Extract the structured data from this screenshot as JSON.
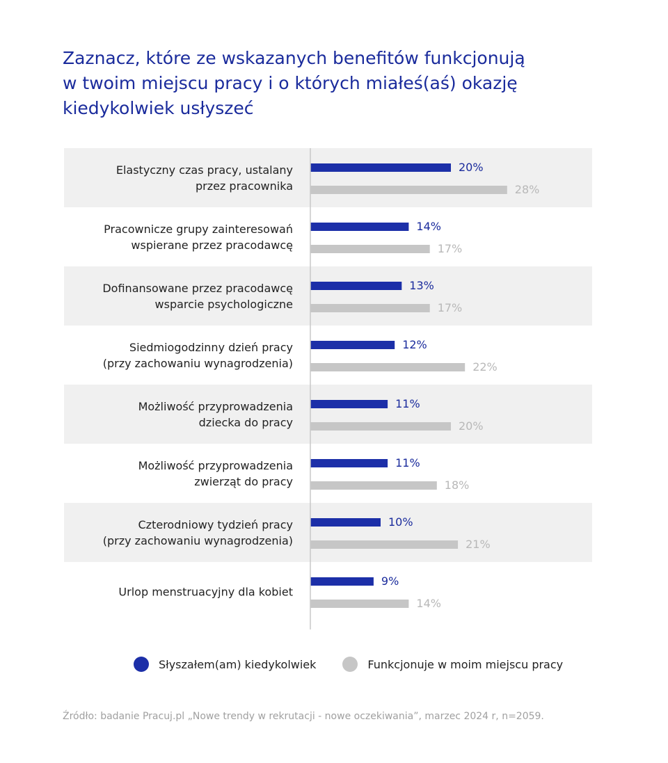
{
  "title_lines": [
    "Zaznacz, które ze wskazanych benefitów funkcjonują",
    "w twoim miejscu pracy i o których miałeś(aś) okazję",
    "kiedykolwiek usłyszeć"
  ],
  "colors": {
    "title": "#1a2b9c",
    "series_heard": "#1c2fa8",
    "series_functioning": "#c6c6c6",
    "value_heard_text": "#1a2b9c",
    "value_functioning_text": "#b8b8b8",
    "row_band": "#f0f0f0",
    "axis": "#c8c8c8"
  },
  "chart_data": {
    "type": "bar",
    "orientation": "horizontal",
    "categories": [
      [
        "Elastyczny czas pracy, ustalany",
        "przez pracownika"
      ],
      [
        "Pracownicze grupy zainteresowań",
        "wspierane przez pracodawcę"
      ],
      [
        "Dofinansowane przez pracodawcę",
        "wsparcie psychologiczne"
      ],
      [
        "Siedmiogodzinny dzień pracy",
        "(przy zachowaniu wynagrodzenia)"
      ],
      [
        "Możliwość przyprowadzenia",
        "dziecka do pracy"
      ],
      [
        "Możliwość przyprowadzenia",
        "zwierząt do pracy"
      ],
      [
        "Czterodniowy tydzień pracy",
        "(przy zachowaniu wynagrodzenia)"
      ],
      [
        "Urlop menstruacyjny dla kobiet"
      ]
    ],
    "series": [
      {
        "name": "Słyszałem(am) kiedykolwiek",
        "values": [
          20,
          14,
          13,
          12,
          11,
          11,
          10,
          9
        ]
      },
      {
        "name": "Funkcjonuje w moim miejscu pracy",
        "values": [
          28,
          17,
          17,
          22,
          20,
          18,
          21,
          14
        ]
      }
    ],
    "value_suffix": "%",
    "xlim": [
      0,
      35
    ],
    "grid": false,
    "legend_position": "bottom"
  },
  "source": "Źródło: badanie Pracuj.pl „Nowe trendy w rekrutacji - nowe oczekiwania”, marzec 2024 r, n=2059."
}
